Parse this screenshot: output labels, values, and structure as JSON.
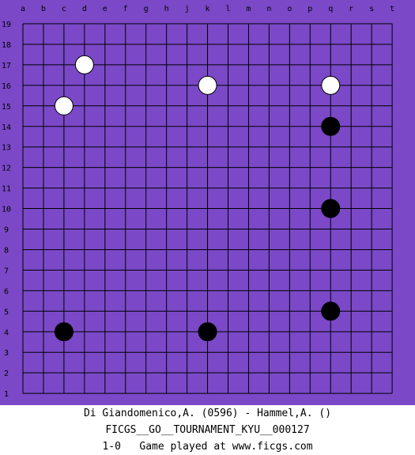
{
  "board": {
    "size": 19,
    "column_labels": [
      "a",
      "b",
      "c",
      "d",
      "e",
      "f",
      "g",
      "h",
      "j",
      "k",
      "l",
      "m",
      "n",
      "o",
      "p",
      "q",
      "r",
      "s",
      "t"
    ],
    "row_labels": [
      "19",
      "18",
      "17",
      "16",
      "15",
      "14",
      "13",
      "12",
      "11",
      "10",
      "9",
      "8",
      "7",
      "6",
      "5",
      "4",
      "3",
      "2",
      "1"
    ],
    "colors": {
      "board_background": "#7b48c8",
      "margin_background": "#7b48c8",
      "grid_line": "#000000",
      "white_stone": "#ffffff",
      "black_stone": "#000000"
    },
    "stones": [
      {
        "color": "white",
        "col": "d",
        "row": 17
      },
      {
        "color": "white",
        "col": "c",
        "row": 15
      },
      {
        "color": "white",
        "col": "k",
        "row": 16
      },
      {
        "color": "white",
        "col": "q",
        "row": 16
      },
      {
        "color": "black",
        "col": "q",
        "row": 14
      },
      {
        "color": "black",
        "col": "q",
        "row": 10
      },
      {
        "color": "black",
        "col": "q",
        "row": 5
      },
      {
        "color": "black",
        "col": "c",
        "row": 4
      },
      {
        "color": "black",
        "col": "k",
        "row": 4
      }
    ]
  },
  "footer": {
    "players": "Di Giandomenico,A. (0596) - Hammel,A. ()",
    "tournament": "FICGS__GO__TOURNAMENT_KYU__000127",
    "result": "1-0   Game played at www.ficgs.com"
  }
}
